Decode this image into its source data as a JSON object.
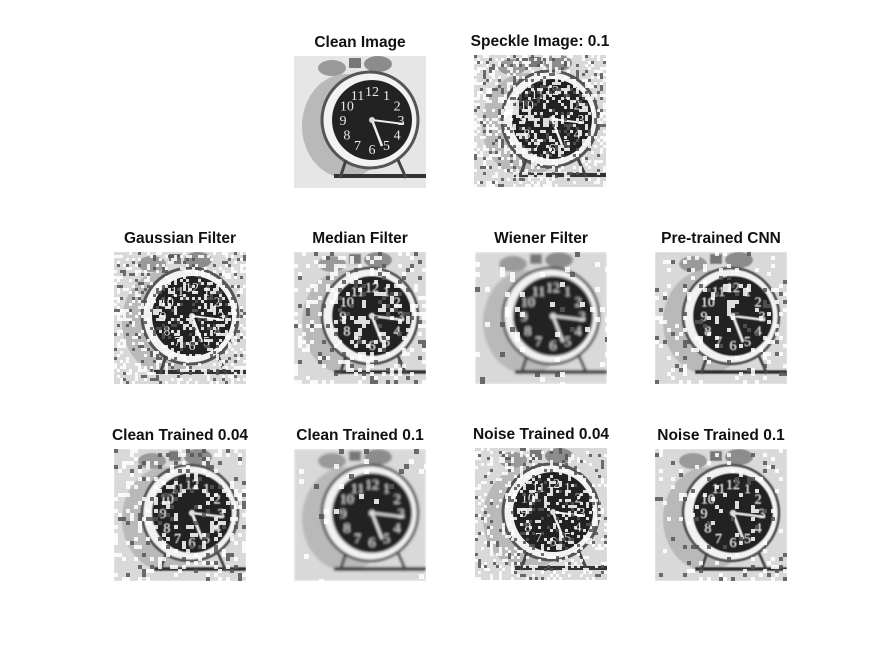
{
  "panels": [
    {
      "id": "clean-image",
      "title": "Clean Image",
      "noise": 0.0,
      "blur": 0.0,
      "grain": 0
    },
    {
      "id": "speckle-image",
      "title": "Speckle Image: 0.1",
      "noise": 0.85,
      "blur": 0.0,
      "grain": 1
    },
    {
      "id": "gaussian-filter",
      "title": "Gaussian Filter",
      "noise": 0.75,
      "blur": 0.3,
      "grain": 1
    },
    {
      "id": "median-filter",
      "title": "Median Filter",
      "noise": 0.5,
      "blur": 0.4,
      "grain": 2
    },
    {
      "id": "wiener-filter",
      "title": "Wiener Filter",
      "noise": 0.15,
      "blur": 1.4,
      "grain": 3
    },
    {
      "id": "pretrained-cnn",
      "title": "Pre-trained CNN",
      "noise": 0.35,
      "blur": 0.5,
      "grain": 2
    },
    {
      "id": "clean-trained-004",
      "title": "Clean Trained 0.04",
      "noise": 0.55,
      "blur": 0.4,
      "grain": 2
    },
    {
      "id": "clean-trained-01",
      "title": "Clean Trained 0.1",
      "noise": 0.1,
      "blur": 1.2,
      "grain": 3
    },
    {
      "id": "noise-trained-004",
      "title": "Noise Trained 0.04",
      "noise": 0.6,
      "blur": 0.2,
      "grain": 1
    },
    {
      "id": "noise-trained-01",
      "title": "Noise Trained 0.1",
      "noise": 0.25,
      "blur": 0.6,
      "grain": 2
    }
  ],
  "clock_numerals": [
    "12",
    "1",
    "2",
    "3",
    "4",
    "5",
    "6",
    "7",
    "8",
    "9",
    "10",
    "11"
  ]
}
